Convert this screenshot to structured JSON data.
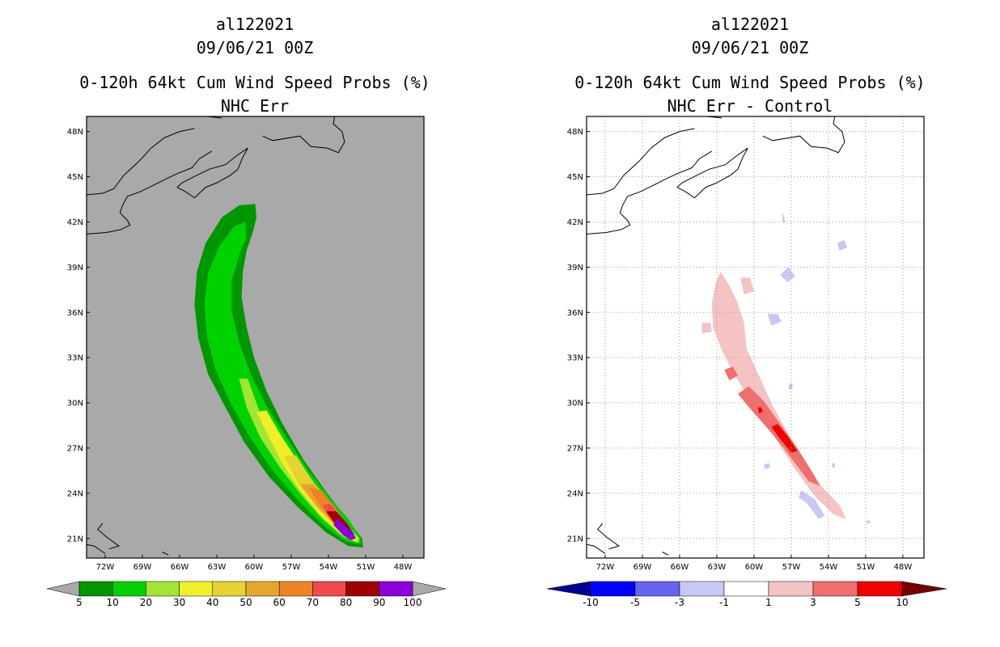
{
  "chart_data": [
    {
      "type": "heatmap",
      "storm_id": "al122021",
      "datetime": "09/06/21 00Z",
      "title": "0-120h 64kt Cum Wind Speed Probs (%)",
      "subtitle": "NHC Err",
      "x_ticks": [
        "72W",
        "69W",
        "66W",
        "63W",
        "60W",
        "57W",
        "54W",
        "51W",
        "48W"
      ],
      "y_ticks": [
        "48N",
        "45N",
        "42N",
        "39N",
        "36N",
        "33N",
        "30N",
        "27N",
        "24N",
        "21N"
      ],
      "lon_range": [
        -73.5,
        -46.3
      ],
      "lat_range": [
        19.7,
        49.0
      ],
      "grid": false,
      "background_color": "#a9a9a9",
      "colorbar": {
        "labels": [
          "5",
          "10",
          "20",
          "30",
          "40",
          "50",
          "60",
          "70",
          "80",
          "90",
          "100"
        ],
        "colors": [
          "#009600",
          "#00d200",
          "#a0e632",
          "#f0f028",
          "#e6d232",
          "#e6a62e",
          "#f08226",
          "#f04a4a",
          "#a00000",
          "#8c00dc"
        ],
        "under_color": "#a9a9a9",
        "over_color": "#a9a9a9"
      },
      "swath": {
        "description": "probability swath from 21N 51W curving north-west then north to 43N 64W",
        "max_value": 100,
        "max_location": {
          "lat": 21.5,
          "lon": -52.0
        }
      }
    },
    {
      "type": "heatmap",
      "storm_id": "al122021",
      "datetime": "09/06/21 00Z",
      "title": "0-120h 64kt Cum Wind Speed Probs (%)",
      "subtitle": "NHC Err - Control",
      "x_ticks": [
        "72W",
        "69W",
        "66W",
        "63W",
        "60W",
        "57W",
        "54W",
        "51W",
        "48W"
      ],
      "y_ticks": [
        "48N",
        "45N",
        "42N",
        "39N",
        "36N",
        "33N",
        "30N",
        "27N",
        "24N",
        "21N"
      ],
      "lon_range": [
        -73.5,
        -46.3
      ],
      "lat_range": [
        19.7,
        49.0
      ],
      "grid": true,
      "background_color": "#ffffff",
      "colorbar": {
        "labels": [
          "-10",
          "-5",
          "-3",
          "-1",
          "1",
          "3",
          "5",
          "10"
        ],
        "colors": [
          "#0000ff",
          "#6464f0",
          "#c8c8f5",
          "#ffffff",
          "#f5c3c3",
          "#f06e6e",
          "#f00000"
        ],
        "under_color": "#000096",
        "over_color": "#780000"
      },
      "difference": {
        "max_value": 10,
        "max_location": {
          "lat": 27.3,
          "lon": -57.0
        },
        "min_value": -3
      }
    }
  ],
  "left_panel": {
    "storm_id": "al122021",
    "datetime": "09/06/21 00Z",
    "title": "0-120h 64kt Cum Wind Speed Probs (%)",
    "subtitle": "NHC Err"
  },
  "right_panel": {
    "storm_id": "al122021",
    "datetime": "09/06/21 00Z",
    "title": "0-120h 64kt Cum Wind Speed Probs (%)",
    "subtitle": "NHC Err - Control"
  }
}
